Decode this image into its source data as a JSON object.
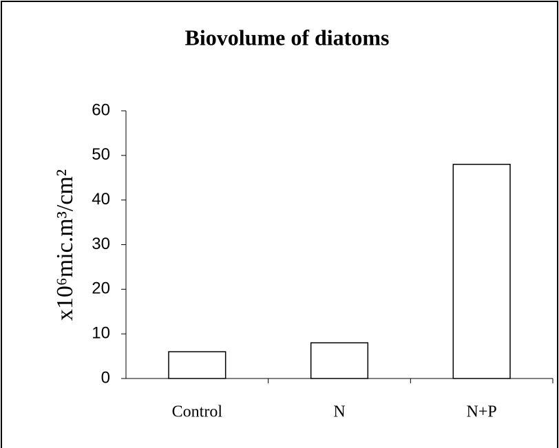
{
  "chart_data": {
    "type": "bar",
    "title": "Biovolume of diatoms",
    "ylabel": "x10⁶mic.m³/cm²",
    "categories": [
      "Control",
      "N",
      "N+P"
    ],
    "values": [
      6,
      8,
      48
    ],
    "color": "#ffffff",
    "ylim": [
      0,
      60
    ],
    "yticks": [
      0,
      10,
      20,
      30,
      40,
      50,
      60
    ],
    "grid": false
  }
}
